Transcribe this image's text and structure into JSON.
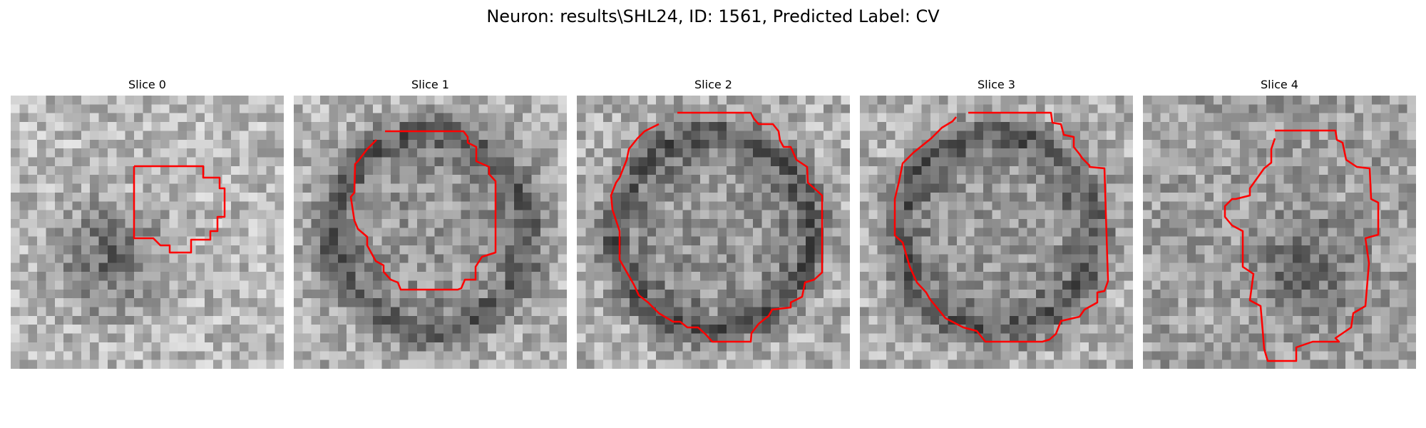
{
  "figure": {
    "title": "Neuron: results\\SHL24, ID: 1561, Predicted Label: CV",
    "colormap": "gray",
    "contour_color": "#ff0000"
  },
  "panels": [
    {
      "title": "Slice 0",
      "pattern": "blob-dark-center"
    },
    {
      "title": "Slice 1",
      "pattern": "ring-dark"
    },
    {
      "title": "Slice 2",
      "pattern": "ring-dark"
    },
    {
      "title": "Slice 3",
      "pattern": "ring-dark"
    },
    {
      "title": "Slice 4",
      "pattern": "noise-dark-center"
    }
  ]
}
